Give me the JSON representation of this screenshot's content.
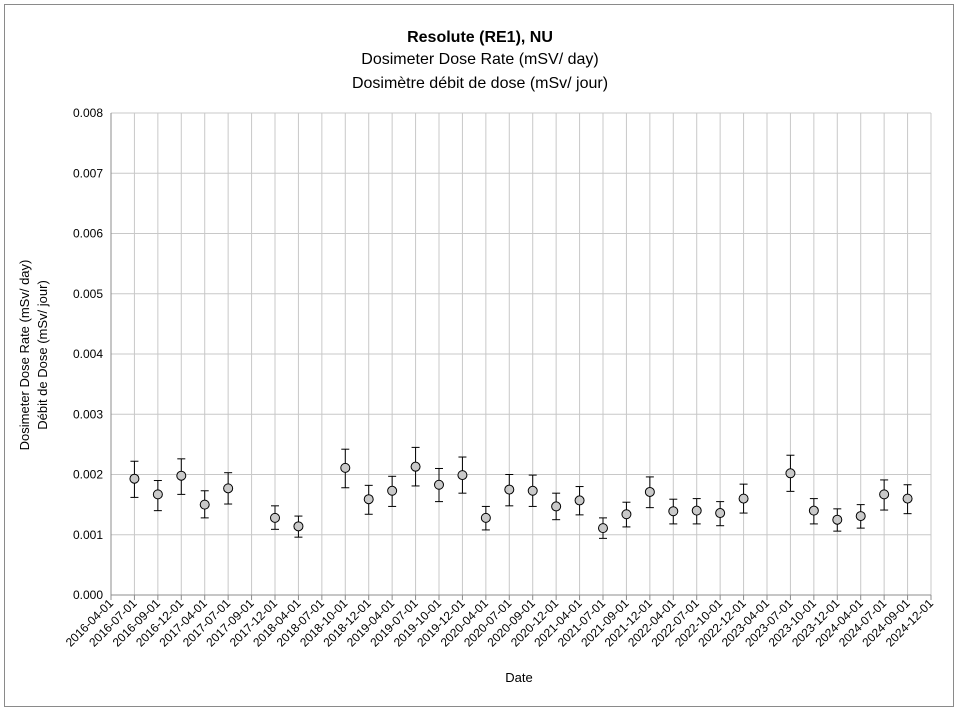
{
  "chart_data": {
    "type": "scatter",
    "title": "Resolute (RE1), NU",
    "subtitle_en": "Dosimeter Dose Rate (mSV/ day)",
    "subtitle_fr": "Dosimètre débit de dose (mSv/ jour)",
    "xlabel": "Date",
    "ylabel_en": "Dosimeter Dose Rate (mSv/ day)",
    "ylabel_fr": "Débit de Dose (mSv/ jour)",
    "ylim": [
      0,
      0.008
    ],
    "y_ticks": [
      "0.000",
      "0.001",
      "0.002",
      "0.003",
      "0.004",
      "0.005",
      "0.006",
      "0.007",
      "0.008"
    ],
    "x_ticks": [
      "2016-04-01",
      "2016-07-01",
      "2016-09-01",
      "2016-12-01",
      "2017-04-01",
      "2017-07-01",
      "2017-09-01",
      "2017-12-01",
      "2018-04-01",
      "2018-07-01",
      "2018-10-01",
      "2018-12-01",
      "2019-04-01",
      "2019-07-01",
      "2019-10-01",
      "2019-12-01",
      "2020-04-01",
      "2020-07-01",
      "2020-09-01",
      "2020-12-01",
      "2021-04-01",
      "2021-07-01",
      "2021-09-01",
      "2021-12-01",
      "2022-04-01",
      "2022-07-01",
      "2022-10-01",
      "2022-12-01",
      "2023-04-01",
      "2023-07-01",
      "2023-10-01",
      "2023-12-01",
      "2024-04-01",
      "2024-07-01",
      "2024-09-01",
      "2024-12-01"
    ],
    "grid": true,
    "legend": "none",
    "points": [
      {
        "x": "2016-07-01",
        "y": 0.00193,
        "err_low": 0.00162,
        "err_high": 0.00222
      },
      {
        "x": "2016-09-01",
        "y": 0.00167,
        "err_low": 0.0014,
        "err_high": 0.0019
      },
      {
        "x": "2016-12-01",
        "y": 0.00198,
        "err_low": 0.00167,
        "err_high": 0.00226
      },
      {
        "x": "2017-04-01",
        "y": 0.0015,
        "err_low": 0.00128,
        "err_high": 0.00173
      },
      {
        "x": "2017-07-01",
        "y": 0.00177,
        "err_low": 0.00151,
        "err_high": 0.00203
      },
      {
        "x": "2017-12-01",
        "y": 0.00128,
        "err_low": 0.00109,
        "err_high": 0.00148
      },
      {
        "x": "2018-04-01",
        "y": 0.00114,
        "err_low": 0.00096,
        "err_high": 0.00131
      },
      {
        "x": "2018-10-01",
        "y": 0.00211,
        "err_low": 0.00178,
        "err_high": 0.00242
      },
      {
        "x": "2018-12-01",
        "y": 0.00159,
        "err_low": 0.00134,
        "err_high": 0.00182
      },
      {
        "x": "2019-04-01",
        "y": 0.00173,
        "err_low": 0.00147,
        "err_high": 0.00197
      },
      {
        "x": "2019-07-01",
        "y": 0.00213,
        "err_low": 0.00181,
        "err_high": 0.00245
      },
      {
        "x": "2019-10-01",
        "y": 0.00183,
        "err_low": 0.00155,
        "err_high": 0.0021
      },
      {
        "x": "2019-12-01",
        "y": 0.00199,
        "err_low": 0.00169,
        "err_high": 0.00229
      },
      {
        "x": "2020-04-01",
        "y": 0.00128,
        "err_low": 0.00108,
        "err_high": 0.00147
      },
      {
        "x": "2020-07-01",
        "y": 0.00175,
        "err_low": 0.00148,
        "err_high": 0.002
      },
      {
        "x": "2020-09-01",
        "y": 0.00173,
        "err_low": 0.00147,
        "err_high": 0.00199
      },
      {
        "x": "2020-12-01",
        "y": 0.00147,
        "err_low": 0.00125,
        "err_high": 0.00169
      },
      {
        "x": "2021-04-01",
        "y": 0.00157,
        "err_low": 0.00133,
        "err_high": 0.0018
      },
      {
        "x": "2021-07-01",
        "y": 0.00111,
        "err_low": 0.00094,
        "err_high": 0.00128
      },
      {
        "x": "2021-09-01",
        "y": 0.00134,
        "err_low": 0.00113,
        "err_high": 0.00154
      },
      {
        "x": "2021-12-01",
        "y": 0.00171,
        "err_low": 0.00145,
        "err_high": 0.00196
      },
      {
        "x": "2022-04-01",
        "y": 0.00139,
        "err_low": 0.00118,
        "err_high": 0.00159
      },
      {
        "x": "2022-07-01",
        "y": 0.0014,
        "err_low": 0.00118,
        "err_high": 0.0016
      },
      {
        "x": "2022-10-01",
        "y": 0.00136,
        "err_low": 0.00115,
        "err_high": 0.00155
      },
      {
        "x": "2022-12-01",
        "y": 0.0016,
        "err_low": 0.00136,
        "err_high": 0.00184
      },
      {
        "x": "2023-07-01",
        "y": 0.00202,
        "err_low": 0.00172,
        "err_high": 0.00232
      },
      {
        "x": "2023-10-01",
        "y": 0.0014,
        "err_low": 0.00118,
        "err_high": 0.0016
      },
      {
        "x": "2023-12-01",
        "y": 0.00125,
        "err_low": 0.00106,
        "err_high": 0.00143
      },
      {
        "x": "2024-04-01",
        "y": 0.00131,
        "err_low": 0.00111,
        "err_high": 0.0015
      },
      {
        "x": "2024-07-01",
        "y": 0.00167,
        "err_low": 0.00141,
        "err_high": 0.00191
      },
      {
        "x": "2024-09-01",
        "y": 0.0016,
        "err_low": 0.00135,
        "err_high": 0.00183
      }
    ],
    "colors": {
      "marker_fill": "#c9c9c9",
      "marker_stroke": "#000000",
      "grid": "#c8c8c8"
    }
  }
}
